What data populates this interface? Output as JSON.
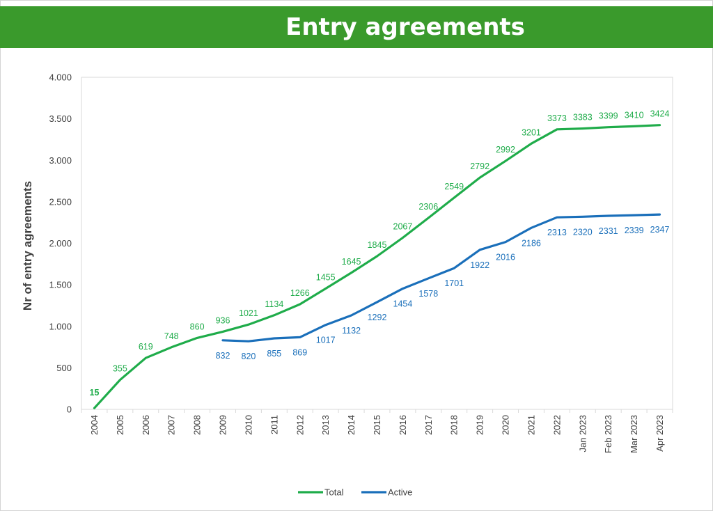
{
  "header": {
    "title": "Entry agreements"
  },
  "chart_data": {
    "type": "line",
    "title": "Entry agreements",
    "ylabel": "Nr of entry agreements",
    "xlabel": "",
    "ylim": [
      0,
      4000
    ],
    "yticks": [
      0,
      500,
      1000,
      1500,
      2000,
      2500,
      3000,
      3500,
      4000
    ],
    "ytick_labels": [
      "0",
      "500",
      "1.000",
      "1.500",
      "2.000",
      "2.500",
      "3.000",
      "3.500",
      "4.000"
    ],
    "categories": [
      "2004",
      "2005",
      "2006",
      "2007",
      "2008",
      "2009",
      "2010",
      "2011",
      "2012",
      "2013",
      "2014",
      "2015",
      "2016",
      "2017",
      "2018",
      "2019",
      "2020",
      "2021",
      "2022",
      "Jan 2023",
      "Feb 2023",
      "Mar 2023",
      "Apr 2023"
    ],
    "grid": false,
    "legend": "bottom",
    "series": [
      {
        "name": "Total",
        "color": "#1fac4a",
        "values": [
          15,
          355,
          619,
          748,
          860,
          936,
          1021,
          1134,
          1266,
          1455,
          1645,
          1845,
          2067,
          2306,
          2549,
          2792,
          2992,
          3201,
          3373,
          3383,
          3399,
          3410,
          3424
        ]
      },
      {
        "name": "Active",
        "color": "#1a6fba",
        "values": [
          null,
          null,
          null,
          null,
          null,
          832,
          820,
          855,
          869,
          1017,
          1132,
          1292,
          1454,
          1578,
          1701,
          1922,
          2016,
          2186,
          2313,
          2320,
          2331,
          2339,
          2347
        ]
      }
    ]
  }
}
